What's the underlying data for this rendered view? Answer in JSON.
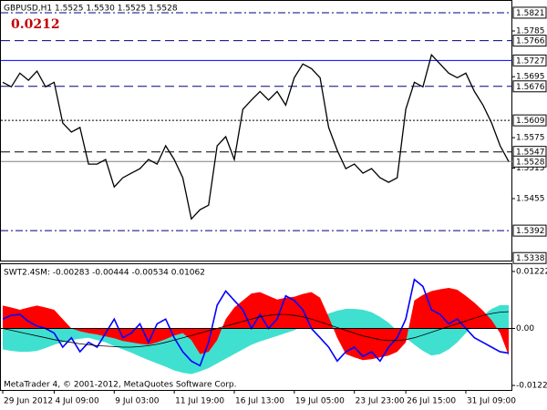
{
  "chart_data": [
    {
      "type": "line",
      "header": "GBPUSD,H1  1.5525 1.5530 1.5525 1.5528",
      "annotation": "0.0212",
      "categories": [
        "29 Jun 2012",
        null,
        null,
        null,
        null,
        null,
        "4 Jul 09:00",
        null,
        null,
        null,
        null,
        null,
        null,
        "9 Jul 03:00",
        null,
        null,
        null,
        null,
        null,
        null,
        "11 Jul 19:00",
        null,
        null,
        null,
        null,
        null,
        null,
        "16 Jul 13:00",
        null,
        null,
        null,
        null,
        null,
        null,
        "19 Jul 05:00",
        null,
        null,
        null,
        null,
        null,
        null,
        "23 Jul 23:00",
        null,
        null,
        null,
        null,
        null,
        "26 Jul 15:00",
        null,
        null,
        null,
        null,
        null,
        null,
        "31 Jul 09:00",
        null,
        null,
        null,
        null,
        null
      ],
      "values": [
        1.5684,
        1.5675,
        1.5702,
        1.5688,
        1.5706,
        1.5675,
        1.5684,
        1.5604,
        1.5586,
        1.5595,
        1.5523,
        1.5523,
        1.5532,
        1.5478,
        1.5496,
        1.5505,
        1.5514,
        1.5532,
        1.5523,
        1.5559,
        1.5532,
        1.5496,
        1.5415,
        1.5433,
        1.5442,
        1.5559,
        1.5577,
        1.5532,
        1.5631,
        1.5649,
        1.5666,
        1.5649,
        1.5666,
        1.5639,
        1.5693,
        1.572,
        1.5711,
        1.5693,
        1.5595,
        1.555,
        1.5514,
        1.5523,
        1.5505,
        1.5514,
        1.5496,
        1.5487,
        1.5496,
        1.5631,
        1.5684,
        1.5675,
        1.5738,
        1.572,
        1.5702,
        1.5693,
        1.5702,
        1.5666,
        1.5639,
        1.5604,
        1.5559,
        1.5528
      ],
      "color": "#000000",
      "ylim": [
        1.5333,
        1.5846
      ],
      "yticks": [
        1.5785,
        1.5695,
        1.5575,
        1.5515,
        1.5455
      ],
      "levels": [
        {
          "value": 1.5821,
          "style": "dashdot",
          "color": "#000080"
        },
        {
          "value": 1.5766,
          "style": "dash",
          "color": "#000080"
        },
        {
          "value": 1.5727,
          "style": "solid",
          "color": "#0000ff"
        },
        {
          "value": 1.5676,
          "style": "dash",
          "color": "#000080"
        },
        {
          "value": 1.5609,
          "style": "dot",
          "color": "#000000"
        },
        {
          "value": 1.5547,
          "style": "dash",
          "color": "#000000"
        },
        {
          "value": 1.5528,
          "style": "solid",
          "color": "#808080"
        },
        {
          "value": 1.5392,
          "style": "dashdot",
          "color": "#000080"
        },
        {
          "value": 1.5338,
          "style": "none",
          "color": "#000000"
        }
      ]
    },
    {
      "type": "area",
      "title": "SWT2.4SM: -0.00283 -0.00444 -0.00534 0.01062",
      "series": [
        {
          "kind": "area",
          "color": "#40e0d0",
          "values": [
            -0.0045,
            -0.0048,
            -0.005,
            -0.005,
            -0.0048,
            -0.0042,
            -0.0035,
            -0.003,
            -0.0025,
            -0.0022,
            -0.002,
            -0.0025,
            -0.003,
            -0.0038,
            -0.0045,
            -0.0052,
            -0.006,
            -0.0068,
            -0.0075,
            -0.0082,
            -0.009,
            -0.0095,
            -0.0098,
            -0.0092,
            -0.0085,
            -0.0075,
            -0.0065,
            -0.0055,
            -0.0045,
            -0.0035,
            -0.0028,
            -0.0022,
            -0.0016,
            -0.001,
            -0.0004,
            0.0005,
            0.0015,
            0.0025,
            0.0032,
            0.0038,
            0.0042,
            0.0042,
            0.004,
            0.0035,
            0.0025,
            0.0012,
            -0.0005,
            -0.002,
            -0.0035,
            -0.0048,
            -0.0058,
            -0.0055,
            -0.0045,
            -0.003,
            -0.001,
            0.001,
            0.0028,
            0.0042,
            0.005,
            0.005
          ]
        },
        {
          "kind": "area",
          "color": "#ff0000",
          "values": [
            0.0049,
            0.0045,
            0.004,
            0.0045,
            0.0049,
            0.0045,
            0.004,
            0.002,
            0.0,
            -0.0006,
            -0.001,
            -0.0013,
            -0.0017,
            -0.0021,
            -0.0027,
            -0.003,
            -0.0033,
            -0.0035,
            -0.003,
            -0.0023,
            -0.0015,
            -0.001,
            -0.0025,
            -0.0055,
            -0.005,
            -0.0025,
            0.002,
            0.0045,
            0.006,
            0.0075,
            0.0078,
            0.007,
            0.0062,
            0.0066,
            0.0068,
            0.0074,
            0.0078,
            0.0066,
            0.0025,
            -0.002,
            -0.0055,
            -0.0062,
            -0.0068,
            -0.0066,
            -0.0062,
            -0.0058,
            -0.005,
            -0.003,
            0.006,
            0.0072,
            0.008,
            0.0084,
            0.0087,
            0.0083,
            0.007,
            0.0055,
            0.0038,
            0.0018,
            -0.001,
            -0.0058
          ]
        },
        {
          "kind": "line",
          "color": "#0000ff",
          "values": [
            0.002,
            0.0028,
            0.003,
            0.0015,
            0.0005,
            0.0,
            -0.001,
            -0.004,
            -0.002,
            -0.005,
            -0.003,
            -0.004,
            -0.001,
            0.002,
            -0.002,
            -0.001,
            0.001,
            -0.003,
            0.001,
            0.002,
            -0.002,
            -0.005,
            -0.007,
            -0.008,
            -0.003,
            0.005,
            0.008,
            0.006,
            0.004,
            0.0,
            0.003,
            0.0,
            0.002,
            0.007,
            0.006,
            0.004,
            0.0,
            -0.002,
            -0.004,
            -0.007,
            -0.005,
            -0.004,
            -0.006,
            -0.005,
            -0.007,
            -0.004,
            -0.002,
            0.002,
            0.0105,
            0.009,
            0.004,
            0.003,
            0.001,
            0.002,
            0.0,
            -0.002,
            -0.003,
            -0.004,
            -0.005,
            -0.0053
          ]
        },
        {
          "kind": "line",
          "color": "#000000",
          "values": [
            0.0,
            -0.0004,
            -0.0008,
            -0.0012,
            -0.0016,
            -0.002,
            -0.0024,
            -0.0027,
            -0.003,
            -0.0033,
            -0.0035,
            -0.0037,
            -0.0038,
            -0.0039,
            -0.004,
            -0.004,
            -0.0039,
            -0.0037,
            -0.0034,
            -0.003,
            -0.0025,
            -0.002,
            -0.0015,
            -0.001,
            -0.0005,
            0.0,
            0.0005,
            0.001,
            0.0015,
            0.002,
            0.0025,
            0.0028,
            0.003,
            0.003,
            0.0028,
            0.0025,
            0.002,
            0.0014,
            0.0008,
            0.0002,
            -0.0004,
            -0.001,
            -0.0016,
            -0.002,
            -0.0024,
            -0.0026,
            -0.0026,
            -0.0024,
            -0.002,
            -0.0014,
            -0.0008,
            -0.0002,
            0.0004,
            0.001,
            0.0016,
            0.0022,
            0.0028,
            0.0032,
            0.0035,
            0.0036
          ]
        }
      ],
      "ylim": [
        -0.01319,
        0.01377
      ],
      "yticks": [
        0.01222,
        {
          "value": 0,
          "label": "0.00"
        },
        -0.01222
      ]
    }
  ],
  "footer": "MetaTrader 4, © 2001-2012, MetaQuotes Software Corp."
}
